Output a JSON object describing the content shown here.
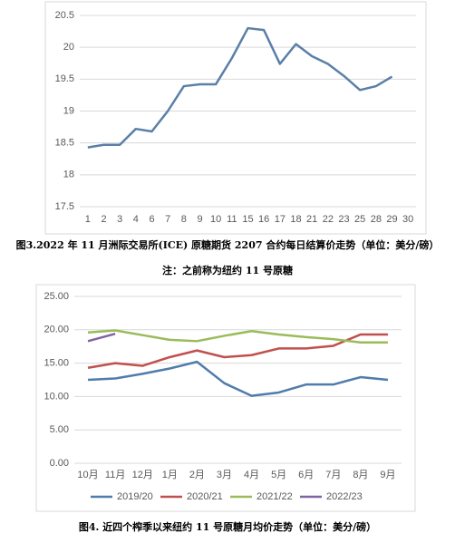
{
  "chart_data": [
    {
      "type": "line",
      "categories": [
        "1",
        "2",
        "3",
        "4",
        "6",
        "7",
        "8",
        "9",
        "10",
        "11",
        "15",
        "16",
        "17",
        "18",
        "21",
        "22",
        "23",
        "25",
        "28",
        "29",
        "30"
      ],
      "values": [
        18.43,
        18.47,
        18.47,
        18.72,
        18.68,
        19.0,
        19.39,
        19.42,
        19.42,
        19.83,
        20.3,
        20.27,
        19.74,
        20.05,
        19.86,
        19.74,
        19.55,
        19.33,
        19.39,
        19.54,
        null
      ],
      "color": "#5b7fa8",
      "ylim": [
        17.5,
        20.5
      ],
      "yticks": [
        17.5,
        18,
        18.5,
        19,
        19.5,
        20,
        20.5
      ],
      "grid": true
    },
    {
      "type": "line",
      "categories": [
        "10月",
        "11月",
        "12月",
        "1月",
        "2月",
        "3月",
        "4月",
        "5月",
        "6月",
        "7月",
        "8月",
        "9月"
      ],
      "series": [
        {
          "name": "2019/20",
          "color": "#4f7cab",
          "values": [
            12.5,
            12.7,
            13.4,
            14.2,
            15.2,
            12.0,
            10.1,
            10.6,
            11.8,
            11.8,
            12.9,
            12.5
          ]
        },
        {
          "name": "2020/21",
          "color": "#c0504d",
          "values": [
            14.3,
            15.0,
            14.6,
            15.9,
            16.9,
            15.9,
            16.2,
            17.2,
            17.2,
            17.6,
            19.3,
            19.3
          ]
        },
        {
          "name": "2021/22",
          "color": "#9bbb59",
          "values": [
            19.6,
            19.9,
            19.2,
            18.5,
            18.3,
            19.1,
            19.8,
            19.3,
            18.9,
            18.6,
            18.1,
            18.1
          ]
        },
        {
          "name": "2022/23",
          "color": "#8064a2",
          "values": [
            18.3,
            19.4,
            null,
            null,
            null,
            null,
            null,
            null,
            null,
            null,
            null,
            null
          ]
        }
      ],
      "ylim": [
        0,
        25
      ],
      "yticks": [
        {
          "value": 0,
          "label": "0.00"
        },
        {
          "value": 5,
          "label": "5.00"
        },
        {
          "value": 10,
          "label": "10.00"
        },
        {
          "value": 15,
          "label": "15.00"
        },
        {
          "value": 20,
          "label": "20.00"
        },
        {
          "value": 25,
          "label": "25.00"
        }
      ],
      "grid": true,
      "legend": "bottom"
    }
  ],
  "captions": [
    "图3.2022 年 11 月洲际交易所(ICE) 原糖期货 2207 合约每日结算价走势（单位：美分/磅）",
    "注：之前称为纽约 11 号原糖",
    "图4. 近四个榨季以来纽约 11 号原糖月均价走势（单位：美分/磅）"
  ]
}
